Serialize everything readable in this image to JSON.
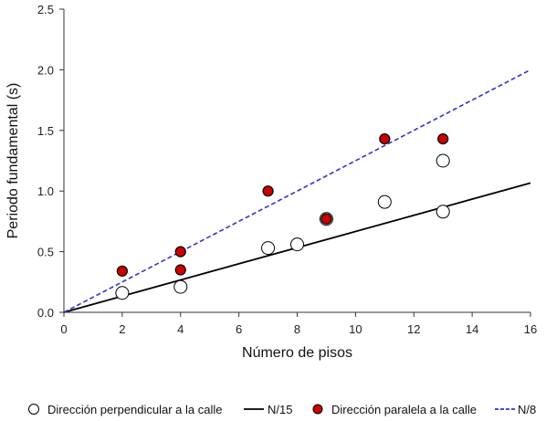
{
  "chart_data": {
    "type": "scatter",
    "xlabel": "Número de pisos",
    "ylabel": "Periodo fundamental (s)",
    "xlim": [
      0,
      16
    ],
    "ylim": [
      0,
      2.5
    ],
    "x_ticks": [
      "0",
      "2",
      "4",
      "6",
      "8",
      "10",
      "12",
      "14",
      "16"
    ],
    "y_ticks": [
      "0.0",
      "0.5",
      "1.0",
      "1.5",
      "2.0",
      "2.5"
    ],
    "grid": false,
    "legend_position": "bottom",
    "series": [
      {
        "name": "Dirección perpendicular a la calle",
        "kind": "scatter",
        "marker": "open-circle",
        "color": "#000000",
        "points": [
          [
            2,
            0.16
          ],
          [
            4,
            0.21
          ],
          [
            7,
            0.53
          ],
          [
            8,
            0.56
          ],
          [
            9,
            0.77
          ],
          [
            11,
            0.91
          ],
          [
            13,
            1.25
          ],
          [
            13,
            0.83
          ]
        ]
      },
      {
        "name": "N/15",
        "kind": "line",
        "style": "solid",
        "color": "#000000",
        "points": [
          [
            0,
            0
          ],
          [
            16,
            1.0667
          ]
        ]
      },
      {
        "name": "Dirección paralela a la calle",
        "kind": "scatter",
        "marker": "filled-circle",
        "color": "#cc0000",
        "points": [
          [
            2,
            0.34
          ],
          [
            4,
            0.5
          ],
          [
            4,
            0.35
          ],
          [
            7,
            1.0
          ],
          [
            9,
            0.77
          ],
          [
            11,
            1.43
          ],
          [
            13,
            1.43
          ]
        ]
      },
      {
        "name": "N/8",
        "kind": "line",
        "style": "dashed",
        "color": "#3333cc",
        "points": [
          [
            0,
            0
          ],
          [
            16,
            2.0
          ]
        ]
      }
    ]
  }
}
